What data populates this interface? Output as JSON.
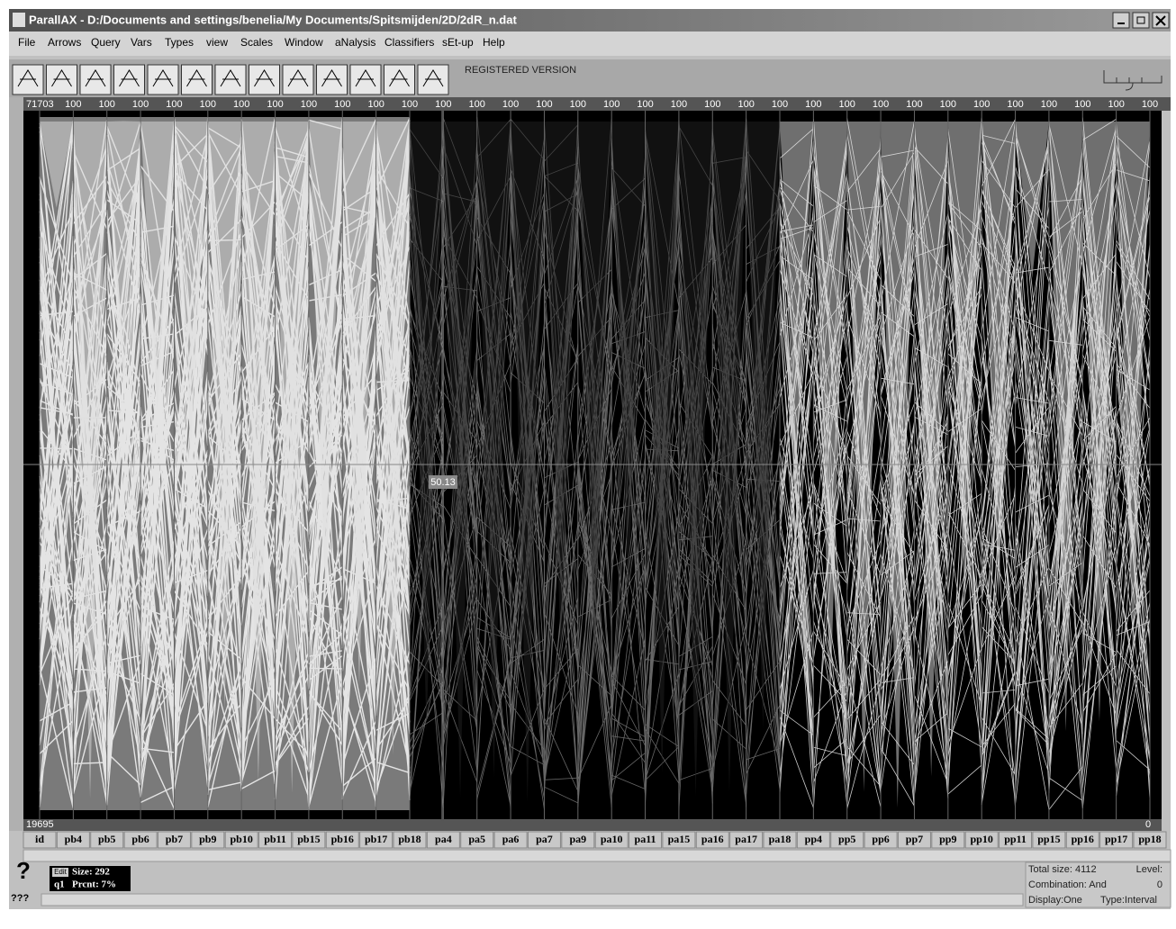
{
  "title_bar": {
    "title": "ParallAX - D:/Documents and settings/benelia/My Documents/Spitsmijden/2D/2dR_n.dat"
  },
  "menu": [
    "File",
    "Arrows",
    "Query",
    "Vars",
    "Types",
    "view",
    "Scales",
    "Window",
    "aNalysis",
    "Classifiers",
    "sEt-up",
    "Help"
  ],
  "toolbar": {
    "banner": "REGISTERED VERSION"
  },
  "plot": {
    "top_values": [
      "71703",
      "100",
      "100",
      "100",
      "100",
      "100",
      "100",
      "100",
      "100",
      "100",
      "100",
      "100",
      "100",
      "100",
      "100",
      "100",
      "100",
      "100",
      "100",
      "100",
      "100",
      "100",
      "100",
      "100",
      "100",
      "100",
      "100",
      "100",
      "100",
      "100",
      "100",
      "100",
      "100",
      "100"
    ],
    "bottom_left": "19695",
    "bottom_right": "0",
    "cursor_value": "50.13",
    "axes": [
      "id",
      "pb4",
      "pb5",
      "pb6",
      "pb7",
      "pb9",
      "pb10",
      "pb11",
      "pb15",
      "pb16",
      "pb17",
      "pb18",
      "pa4",
      "pa5",
      "pa6",
      "pa7",
      "pa9",
      "pa10",
      "pa11",
      "pa15",
      "pa16",
      "pa17",
      "pa18",
      "pp4",
      "pp5",
      "pp6",
      "pp7",
      "pp9",
      "pp10",
      "pp11",
      "pp15",
      "pp16",
      "pp17",
      "pp18"
    ]
  },
  "status": {
    "edit": "Edit",
    "size": "Size: 292",
    "query": "q1",
    "percent": "Prcnt: 7%",
    "help": "???",
    "total_size": "Total size: 4112",
    "level_label": "Level:",
    "combination": "Combination: And",
    "level_value": "0",
    "display": "Display:One",
    "type": "Type:Interval"
  }
}
